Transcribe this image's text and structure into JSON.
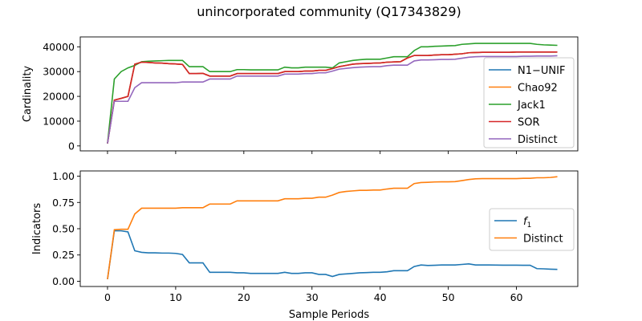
{
  "figure": {
    "title": "unincorporated community (Q17343829)"
  },
  "chart_data": [
    {
      "type": "line",
      "ylabel": "Cardinality",
      "xlabel": "",
      "xlim": [
        -4,
        69
      ],
      "ylim": [
        -2000,
        44000
      ],
      "xticks": [
        0,
        10,
        20,
        30,
        40,
        50,
        60
      ],
      "yticks": [
        0,
        10000,
        20000,
        30000,
        40000
      ],
      "ytick_labels": [
        "0",
        "10000",
        "20000",
        "30000",
        "40000"
      ],
      "show_xtick_labels": false,
      "legend_position": "right",
      "x": [
        0,
        1,
        2,
        3,
        4,
        5,
        6,
        7,
        8,
        9,
        10,
        11,
        12,
        13,
        14,
        15,
        16,
        17,
        18,
        19,
        20,
        21,
        22,
        23,
        24,
        25,
        26,
        27,
        28,
        29,
        30,
        31,
        32,
        33,
        34,
        35,
        36,
        37,
        38,
        39,
        40,
        41,
        42,
        43,
        44,
        45,
        46,
        47,
        48,
        49,
        50,
        51,
        52,
        53,
        54,
        55,
        56,
        57,
        58,
        59,
        60,
        61,
        62,
        63,
        64,
        65,
        66
      ],
      "series": [
        {
          "name": "N1−UNIF",
          "color": "#1f77b4",
          "values": [
            1000,
            18500,
            19200,
            20000,
            33000,
            33800,
            33700,
            33500,
            33400,
            33200,
            33100,
            32900,
            29200,
            29200,
            29300,
            28200,
            28200,
            28200,
            28200,
            29200,
            29200,
            29200,
            29200,
            29200,
            29200,
            29200,
            30000,
            30000,
            30000,
            30200,
            30200,
            30500,
            30500,
            31200,
            32000,
            32500,
            33000,
            33200,
            33300,
            33400,
            33500,
            33800,
            33900,
            34000,
            35500,
            36500,
            36500,
            36500,
            36700,
            36800,
            36800,
            37000,
            37200,
            37600,
            37700,
            37800,
            37800,
            37800,
            37800,
            37800,
            37900,
            37900,
            37900,
            37900,
            37900,
            37900,
            37900
          ]
        },
        {
          "name": "Chao92",
          "color": "#ff7f0e",
          "values": [
            1000,
            18500,
            19200,
            20000,
            33000,
            33800,
            33700,
            33500,
            33400,
            33200,
            33100,
            32900,
            29200,
            29200,
            29300,
            28200,
            28200,
            28200,
            28200,
            29200,
            29200,
            29200,
            29200,
            29200,
            29200,
            29200,
            30000,
            30000,
            30000,
            30200,
            30200,
            30500,
            30500,
            31200,
            32000,
            32500,
            33000,
            33200,
            33300,
            33400,
            33500,
            33800,
            33900,
            34000,
            35500,
            36500,
            36500,
            36500,
            36700,
            36800,
            36800,
            37000,
            37200,
            37600,
            37700,
            37800,
            37800,
            37800,
            37800,
            37800,
            37900,
            37900,
            37900,
            37900,
            37900,
            37900,
            37900
          ]
        },
        {
          "name": "Jack1",
          "color": "#2ca02c",
          "values": [
            1000,
            27000,
            30000,
            31500,
            32500,
            34000,
            34200,
            34300,
            34400,
            34500,
            34500,
            34500,
            32000,
            32000,
            32000,
            30000,
            30000,
            30000,
            30000,
            30800,
            30800,
            30700,
            30700,
            30700,
            30700,
            30700,
            31800,
            31500,
            31500,
            31800,
            31800,
            31800,
            31800,
            31500,
            33500,
            34000,
            34500,
            34800,
            35000,
            35000,
            35000,
            35500,
            36000,
            36000,
            36000,
            38500,
            40000,
            40000,
            40200,
            40300,
            40400,
            40500,
            41000,
            41200,
            41400,
            41400,
            41400,
            41400,
            41400,
            41400,
            41400,
            41400,
            41400,
            41000,
            40800,
            40700,
            40600
          ]
        },
        {
          "name": "SOR",
          "color": "#d62728",
          "values": [
            1000,
            18500,
            19200,
            20000,
            33000,
            33800,
            33700,
            33500,
            33400,
            33200,
            33100,
            32900,
            29200,
            29200,
            29300,
            28200,
            28200,
            28200,
            28200,
            29200,
            29200,
            29200,
            29200,
            29200,
            29200,
            29200,
            30000,
            30000,
            30000,
            30200,
            30200,
            30500,
            30500,
            31200,
            32000,
            32500,
            33000,
            33200,
            33300,
            33400,
            33500,
            33800,
            33900,
            34000,
            35500,
            36500,
            36500,
            36500,
            36700,
            36800,
            36800,
            37000,
            37200,
            37600,
            37700,
            37800,
            37800,
            37800,
            37800,
            37800,
            37900,
            37900,
            37900,
            37900,
            37900,
            37900,
            37900
          ]
        },
        {
          "name": "Distinct",
          "color": "#9467bd",
          "values": [
            1000,
            18000,
            18000,
            18000,
            23500,
            25500,
            25500,
            25500,
            25500,
            25500,
            25500,
            25800,
            25800,
            25800,
            25800,
            27000,
            27000,
            27000,
            27000,
            28200,
            28200,
            28200,
            28200,
            28200,
            28200,
            28200,
            29000,
            29000,
            29000,
            29200,
            29200,
            29500,
            29500,
            30200,
            31000,
            31300,
            31600,
            31800,
            31900,
            32000,
            32000,
            32400,
            32600,
            32600,
            32600,
            34300,
            34700,
            34700,
            34800,
            34900,
            34900,
            35000,
            35400,
            35800,
            36000,
            36100,
            36100,
            36100,
            36100,
            36100,
            36100,
            36200,
            36200,
            36300,
            36300,
            36300,
            36400
          ]
        }
      ]
    },
    {
      "type": "line",
      "ylabel": "Indicators",
      "xlabel": "Sample Periods",
      "xlim": [
        -4,
        69
      ],
      "ylim": [
        -0.05,
        1.05
      ],
      "xticks": [
        0,
        10,
        20,
        30,
        40,
        50,
        60
      ],
      "xtick_labels": [
        "0",
        "10",
        "20",
        "30",
        "40",
        "50",
        "60"
      ],
      "yticks": [
        0,
        0.25,
        0.5,
        0.75,
        1.0
      ],
      "ytick_labels": [
        "0.00",
        "0.25",
        "0.50",
        "0.75",
        "1.00"
      ],
      "show_xtick_labels": true,
      "legend_position": "right",
      "x": [
        0,
        1,
        2,
        3,
        4,
        5,
        6,
        7,
        8,
        9,
        10,
        11,
        12,
        13,
        14,
        15,
        16,
        17,
        18,
        19,
        20,
        21,
        22,
        23,
        24,
        25,
        26,
        27,
        28,
        29,
        30,
        31,
        32,
        33,
        34,
        35,
        36,
        37,
        38,
        39,
        40,
        41,
        42,
        43,
        44,
        45,
        46,
        47,
        48,
        49,
        50,
        51,
        52,
        53,
        54,
        55,
        56,
        57,
        58,
        59,
        60,
        61,
        62,
        63,
        64,
        65,
        66
      ],
      "series": [
        {
          "name": "f1",
          "label_base": "f",
          "label_sub": "1",
          "color": "#1f77b4",
          "values": [
            0.02,
            0.48,
            0.48,
            0.47,
            0.29,
            0.275,
            0.27,
            0.27,
            0.268,
            0.268,
            0.265,
            0.255,
            0.175,
            0.175,
            0.175,
            0.085,
            0.085,
            0.085,
            0.085,
            0.08,
            0.08,
            0.075,
            0.075,
            0.075,
            0.075,
            0.075,
            0.085,
            0.075,
            0.075,
            0.08,
            0.08,
            0.065,
            0.065,
            0.045,
            0.065,
            0.07,
            0.075,
            0.08,
            0.082,
            0.085,
            0.085,
            0.09,
            0.1,
            0.1,
            0.1,
            0.14,
            0.155,
            0.15,
            0.152,
            0.155,
            0.155,
            0.155,
            0.16,
            0.165,
            0.155,
            0.155,
            0.155,
            0.154,
            0.153,
            0.153,
            0.153,
            0.152,
            0.152,
            0.12,
            0.118,
            0.115,
            0.113
          ]
        },
        {
          "name": "Distinct",
          "color": "#ff7f0e",
          "values": [
            0.02,
            0.49,
            0.495,
            0.495,
            0.64,
            0.695,
            0.695,
            0.695,
            0.695,
            0.695,
            0.695,
            0.7,
            0.7,
            0.7,
            0.7,
            0.735,
            0.735,
            0.735,
            0.735,
            0.765,
            0.765,
            0.765,
            0.765,
            0.765,
            0.765,
            0.765,
            0.785,
            0.785,
            0.785,
            0.79,
            0.79,
            0.8,
            0.8,
            0.82,
            0.845,
            0.855,
            0.86,
            0.865,
            0.865,
            0.868,
            0.868,
            0.878,
            0.885,
            0.885,
            0.885,
            0.93,
            0.94,
            0.942,
            0.945,
            0.946,
            0.946,
            0.948,
            0.958,
            0.968,
            0.975,
            0.977,
            0.977,
            0.977,
            0.977,
            0.977,
            0.977,
            0.98,
            0.98,
            0.985,
            0.985,
            0.988,
            0.995
          ]
        }
      ]
    }
  ]
}
